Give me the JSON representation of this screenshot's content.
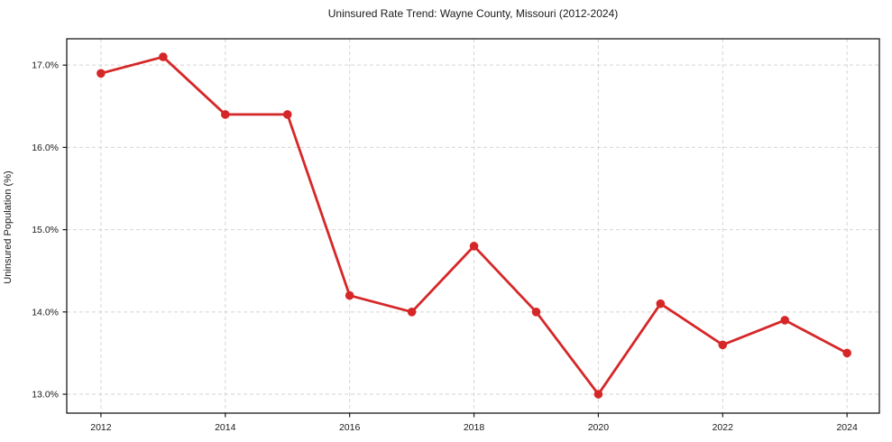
{
  "figure": {
    "title": "Uninsured Rate Trend: Wayne County, Missouri (2012-2024)"
  },
  "chart_data": {
    "type": "line",
    "title": "Uninsured Rate Trend: Wayne County, Missouri (2012-2024)",
    "xlabel": "",
    "ylabel": "Uninsured Population (%)",
    "x": [
      2012,
      2013,
      2014,
      2015,
      2016,
      2017,
      2018,
      2019,
      2020,
      2021,
      2022,
      2023,
      2024
    ],
    "values": [
      16.9,
      17.1,
      16.4,
      16.4,
      14.2,
      14.0,
      14.8,
      14.0,
      13.0,
      14.1,
      13.6,
      13.9,
      13.5
    ],
    "x_ticks": [
      2012,
      2014,
      2016,
      2018,
      2020,
      2022,
      2024
    ],
    "x_tick_labels": [
      "2012",
      "2014",
      "2016",
      "2018",
      "2020",
      "2022",
      "2024"
    ],
    "y_ticks": [
      13,
      14,
      15,
      16,
      17
    ],
    "y_tick_labels": [
      "13.0%",
      "14.0%",
      "15.0%",
      "16.0%",
      "17.0%"
    ],
    "xlim": [
      2011.45,
      2024.52
    ],
    "ylim": [
      12.77,
      17.32
    ],
    "grid": true,
    "legend": false,
    "marker": "circle",
    "line_color": "#d62728",
    "grid_color": "#d5d5d5",
    "axis_color": "#1a1a1a",
    "tick_font_px": 10.5
  }
}
